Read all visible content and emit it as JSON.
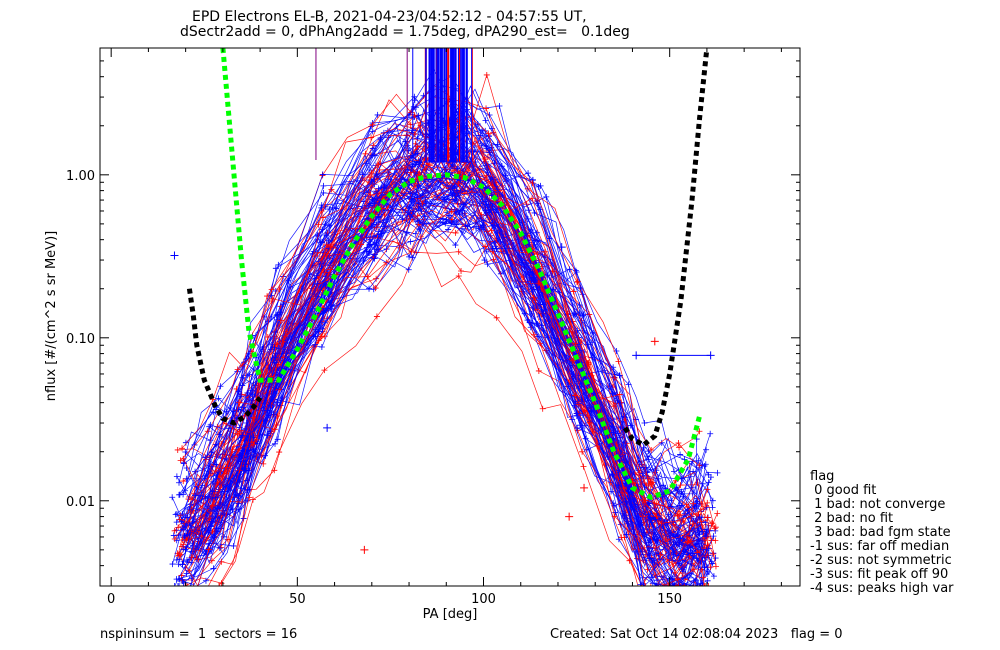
{
  "chart_data": {
    "type": "line",
    "title": "EPD Electrons EL-B, 2021-04-23/04:52:12 - 04:57:55 UT,",
    "subtitle": "dSectr2add = 0, dPhAng2add = 1.75deg, dPA290_est=   0.1deg",
    "xlabel": "PA [deg]",
    "ylabel": "nflux [#/(cm^2 s sr MeV)]",
    "xlim": [
      -3,
      185
    ],
    "ylim": [
      0.003,
      6
    ],
    "yscale": "log",
    "xticks": [
      0,
      50,
      100,
      150
    ],
    "xtick_labels": [
      "0",
      "50",
      "100",
      "150"
    ],
    "yticks": [
      0.01,
      0.1,
      1.0
    ],
    "ytick_labels": [
      "0.01",
      "0.10",
      "1.00"
    ],
    "grid": false,
    "series": [
      {
        "style": "dashed-thick",
        "color": "#00ff00",
        "x": [
          30,
          33,
          35,
          37,
          40,
          45,
          50,
          55,
          60,
          65,
          70,
          75,
          80,
          85,
          90,
          95,
          100,
          105,
          110,
          115,
          120,
          125,
          130,
          135,
          140,
          145,
          150,
          155,
          158
        ],
        "y": [
          6,
          1.0,
          0.3,
          0.11,
          0.055,
          0.055,
          0.085,
          0.14,
          0.24,
          0.38,
          0.56,
          0.76,
          0.91,
          0.98,
          1.0,
          0.96,
          0.84,
          0.65,
          0.44,
          0.26,
          0.14,
          0.075,
          0.04,
          0.02,
          0.012,
          0.0105,
          0.0115,
          0.018,
          0.033
        ]
      },
      {
        "style": "dashed-thick",
        "color": "#000000",
        "x": [
          21,
          22,
          23,
          25,
          28,
          30,
          33,
          36,
          38,
          40,
          138,
          140,
          143,
          146,
          148,
          150,
          153,
          156,
          158,
          160
        ],
        "y": [
          0.2,
          0.14,
          0.09,
          0.055,
          0.038,
          0.032,
          0.03,
          0.033,
          0.037,
          0.043,
          0.028,
          0.024,
          0.022,
          0.025,
          0.035,
          0.06,
          0.17,
          0.7,
          2.2,
          6
        ]
      }
    ],
    "spike_markers": {
      "color_red": "#ff0000",
      "color_blue": "#0000ff",
      "color_purple": "#800080",
      "x_positions": [
        55,
        79.5,
        81,
        84.5,
        85.5,
        86.5,
        87.5,
        88.5,
        89.5,
        90.5,
        91.5,
        92.5,
        93.5,
        94.5,
        95.5,
        97
      ]
    },
    "scatter_sample": {
      "blue_plus": [
        [
          17,
          0.32
        ],
        [
          161,
          0.078
        ],
        [
          141,
          0.078
        ],
        [
          121,
          0.36
        ],
        [
          98,
          0.48
        ],
        [
          58,
          0.028
        ]
      ],
      "red_plus": [
        [
          146,
          0.095
        ],
        [
          123,
          0.008
        ],
        [
          127,
          0.012
        ],
        [
          68,
          0.005
        ]
      ]
    }
  },
  "legend": {
    "title": "flag",
    "items": [
      " 0 good fit",
      " 1 bad: not converge",
      " 2 bad: no fit",
      " 3 bad: bad fgm state",
      "-1 sus: far off median",
      "-2 sus: not symmetric",
      "-3 sus: fit peak off 90",
      "-4 sus: peaks high var"
    ]
  },
  "footer": {
    "left": "nspininsum =  1  sectors = 16",
    "right": "Created: Sat Oct 14 02:08:04 2023   flag = 0"
  }
}
